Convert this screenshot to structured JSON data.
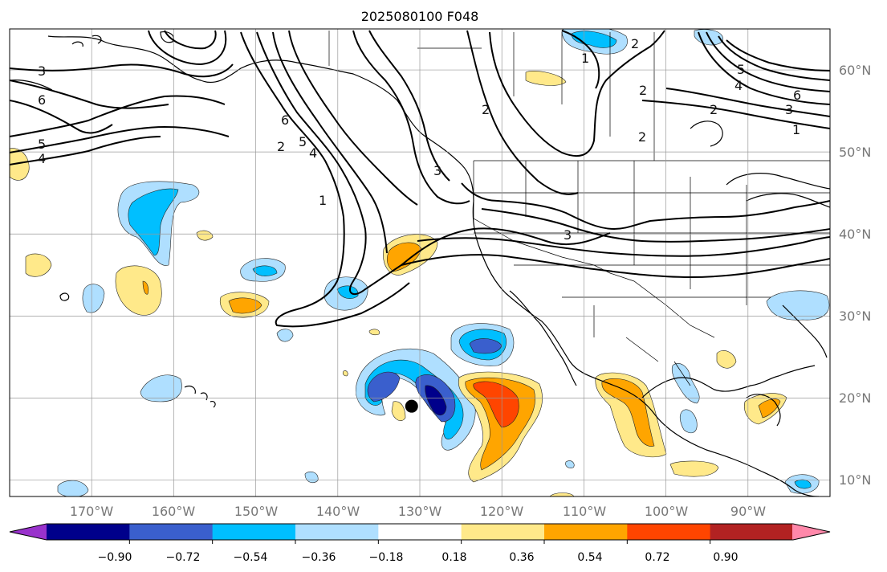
{
  "title": "2025080100 F048",
  "lon_ticks": [
    "170°W",
    "160°W",
    "150°W",
    "140°W",
    "130°W",
    "120°W",
    "110°W",
    "100°W",
    "90°W"
  ],
  "lat_ticks": [
    "60°N",
    "50°N",
    "40°N",
    "30°N",
    "20°N",
    "10°N"
  ],
  "colorbar": {
    "ticks": [
      "−0.90",
      "−0.72",
      "−0.54",
      "−0.36",
      "−0.18",
      "0.18",
      "0.36",
      "0.54",
      "0.72",
      "0.90"
    ],
    "colors": [
      "#9932cc",
      "#00008b",
      "#3a5fcd",
      "#00bfff",
      "#afdfff",
      "#ffffff",
      "#ffe98a",
      "#ffa500",
      "#ff4500",
      "#b22222",
      "#ff88aa"
    ]
  },
  "contour_labels": [
    "3",
    "6",
    "5",
    "4",
    "6",
    "5",
    "4",
    "2",
    "1",
    "3",
    "2",
    "2",
    "1",
    "2",
    "4",
    "6",
    "3",
    "5",
    "2",
    "1",
    "2",
    "3"
  ],
  "marker": {
    "lon": -131,
    "lat": 19
  }
}
